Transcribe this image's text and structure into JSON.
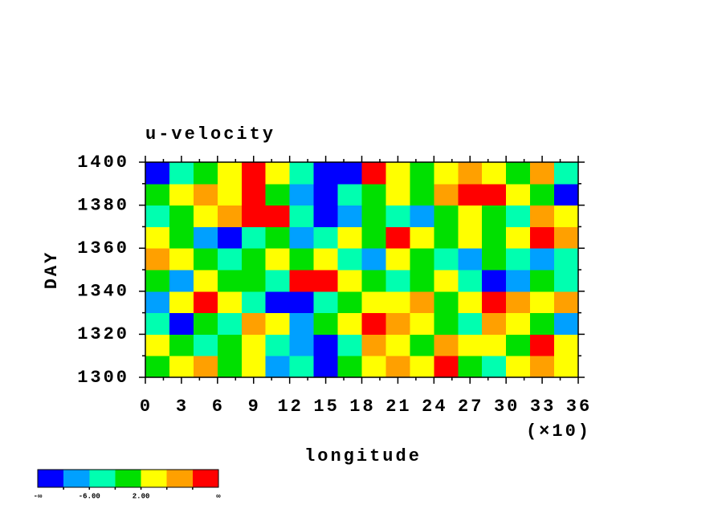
{
  "chart_data": {
    "type": "heatmap",
    "title": "u-velocity",
    "y_label": "DAY",
    "x_label": "longitude",
    "x_multiplier": "(×10)",
    "xlim": [
      0,
      36
    ],
    "xticks": [
      0,
      3,
      6,
      9,
      12,
      15,
      18,
      21,
      24,
      27,
      30,
      33,
      36
    ],
    "ylim": [
      1300,
      1400
    ],
    "yticks": [
      1300,
      1320,
      1340,
      1360,
      1380,
      1400
    ],
    "x": [
      1,
      3,
      5,
      7,
      9,
      11,
      13,
      15,
      17,
      19,
      21,
      23,
      25,
      27,
      29,
      31,
      33,
      35
    ],
    "y": [
      1305,
      1315,
      1325,
      1335,
      1345,
      1355,
      1365,
      1375,
      1385,
      1395
    ],
    "z": [
      [
        0,
        4,
        8,
        0,
        4,
        -8,
        -4,
        -12,
        0,
        4,
        8,
        4,
        12,
        0,
        -4,
        4,
        8,
        4
      ],
      [
        4,
        0,
        -4,
        0,
        4,
        -4,
        -8,
        -12,
        -4,
        8,
        4,
        0,
        8,
        4,
        4,
        0,
        12,
        4
      ],
      [
        -4,
        -12,
        0,
        -4,
        8,
        4,
        -8,
        0,
        4,
        12,
        8,
        4,
        0,
        -4,
        8,
        4,
        0,
        -8
      ],
      [
        -8,
        4,
        12,
        4,
        -4,
        -12,
        -12,
        -4,
        0,
        4,
        4,
        8,
        0,
        4,
        12,
        8,
        4,
        8
      ],
      [
        0,
        -8,
        4,
        0,
        0,
        -4,
        12,
        12,
        4,
        0,
        -4,
        0,
        4,
        -4,
        -12,
        -8,
        0,
        -4
      ],
      [
        8,
        4,
        0,
        -4,
        0,
        4,
        0,
        4,
        -4,
        -8,
        4,
        0,
        -4,
        -8,
        0,
        -4,
        -8,
        -4
      ],
      [
        4,
        0,
        -8,
        -12,
        -4,
        0,
        -8,
        -4,
        4,
        0,
        12,
        4,
        0,
        4,
        0,
        4,
        12,
        8
      ],
      [
        -4,
        0,
        4,
        8,
        12,
        12,
        -4,
        -12,
        -8,
        0,
        -4,
        -8,
        0,
        4,
        0,
        -4,
        8,
        4
      ],
      [
        0,
        4,
        8,
        4,
        12,
        0,
        -8,
        -12,
        -4,
        0,
        4,
        0,
        8,
        12,
        12,
        4,
        0,
        -12
      ],
      [
        -12,
        -4,
        0,
        4,
        12,
        4,
        -4,
        -12,
        -12,
        12,
        4,
        0,
        4,
        8,
        4,
        0,
        8,
        -4
      ]
    ],
    "colorbar": {
      "levels": [
        -10,
        -6,
        -2,
        2,
        6,
        10
      ],
      "colors": [
        "#0000ff",
        "#00a0ff",
        "#00ffb0",
        "#00e000",
        "#ffff00",
        "#ffa000",
        "#ff0000"
      ],
      "ticks": [
        {
          "label": "-∞"
        },
        {
          "value": -6,
          "label": "-6.00"
        },
        {
          "value": 2,
          "label": "2.00"
        },
        {
          "label": "∞"
        }
      ]
    }
  }
}
